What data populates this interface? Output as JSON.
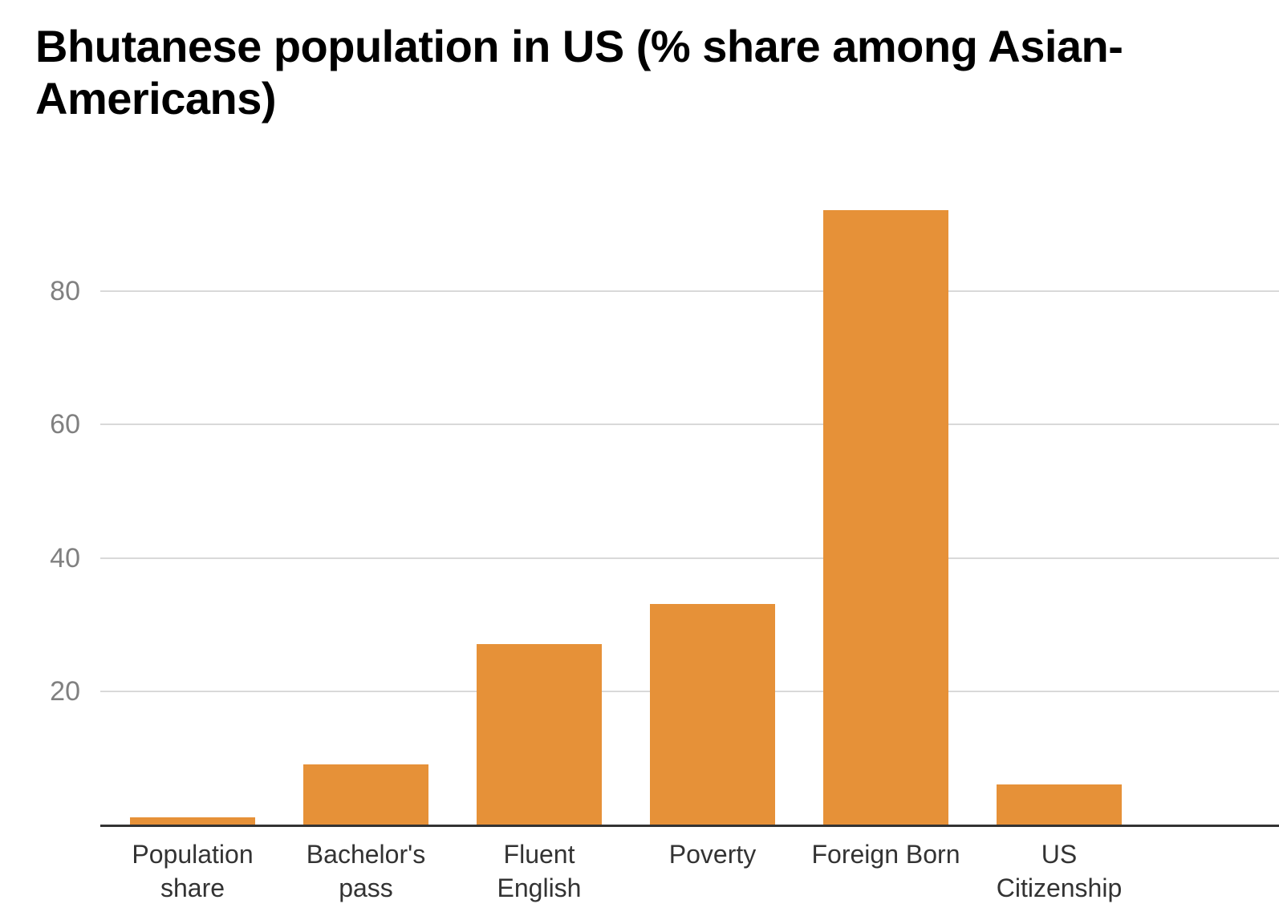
{
  "title_display": "Bhutanese population in US (% share among Asian-\nAmericans)",
  "colors": {
    "background": "#ffffff",
    "title": "#000000",
    "bar": "#e69138",
    "gridline": "#d9d9d9",
    "axis_line": "#333333",
    "y_tick_text": "#808080",
    "x_tick_text": "#333333"
  },
  "chart_data": {
    "type": "bar",
    "title": "Bhutanese population in US (% share among Asian-Americans)",
    "categories": [
      "Population share",
      "Bachelor's pass",
      "Fluent English",
      "Poverty",
      "Foreign Born",
      "US Citizenship"
    ],
    "category_lines": [
      [
        "Population",
        "share"
      ],
      [
        "Bachelor's",
        "pass"
      ],
      [
        "Fluent",
        "English"
      ],
      [
        "Poverty"
      ],
      [
        "Foreign Born"
      ],
      [
        "US",
        "Citizenship"
      ]
    ],
    "values": [
      1.1,
      9,
      27,
      33,
      92,
      6
    ],
    "series_color": "#e69138",
    "xlabel": "",
    "ylabel": "",
    "yticks": [
      20,
      40,
      60,
      80
    ],
    "ylim": [
      0,
      100
    ],
    "grid": true,
    "legend": "none"
  }
}
